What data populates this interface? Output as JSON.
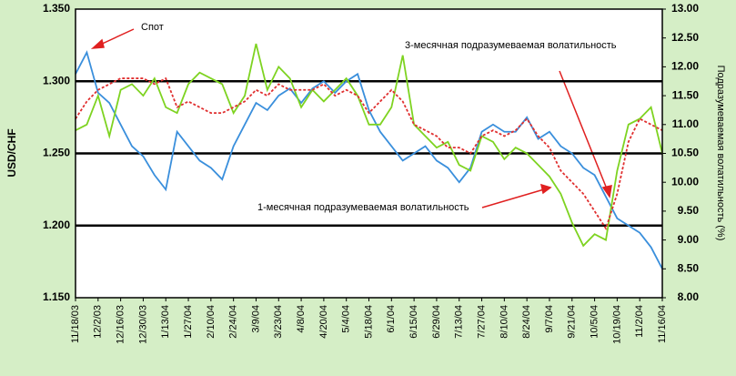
{
  "chart_data": {
    "type": "line",
    "y_label": "USD/CHF",
    "y2_label": "Подразумеваемая волатильность (%)",
    "annotations": [
      "Спот",
      "3-месячная подразумеваемая волатильность",
      "1-месячная подразумеваемая волатильность"
    ],
    "categories": [
      "11/18/03",
      null,
      "12/2/03",
      null,
      "12/16/03",
      null,
      "12/30/03",
      null,
      "1/13/04",
      null,
      "1/27/04",
      null,
      "2/10/04",
      null,
      "2/24/04",
      null,
      "3/9/04",
      null,
      "3/23/04",
      null,
      "4/8/04",
      null,
      "4/20/04",
      null,
      "5/4/04",
      null,
      "5/18/04",
      null,
      "6/1/04",
      null,
      "6/15/04",
      null,
      "6/29/04",
      null,
      "7/13/04",
      null,
      "7/27/04",
      null,
      "8/10/04",
      null,
      "8/24/04",
      null,
      "9/7/04",
      null,
      "9/21/04",
      null,
      "10/5/04",
      null,
      "10/19/04",
      null,
      "11/2/04",
      null,
      "11/16/04"
    ],
    "ylim": [
      1.15,
      1.35
    ],
    "yticks": [
      {
        "value": 1.15,
        "label": "1.150"
      },
      {
        "value": 1.2,
        "label": "1.200"
      },
      {
        "value": 1.25,
        "label": "1.250"
      },
      {
        "value": 1.3,
        "label": "1.300"
      },
      {
        "value": 1.35,
        "label": "1.350"
      }
    ],
    "y2lim": [
      8,
      13
    ],
    "y2ticks": [
      {
        "value": 8,
        "label": "8.00"
      },
      {
        "value": 8.5,
        "label": "8.50"
      },
      {
        "value": 9,
        "label": "9.00"
      },
      {
        "value": 9.5,
        "label": "9.50"
      },
      {
        "value": 10,
        "label": "10.00"
      },
      {
        "value": 10.5,
        "label": "10.50"
      },
      {
        "value": 11,
        "label": "11.00"
      },
      {
        "value": 11.5,
        "label": "11.50"
      },
      {
        "value": 12,
        "label": "12.00"
      },
      {
        "value": 12.5,
        "label": "12.50"
      },
      {
        "value": 13,
        "label": "13.00"
      }
    ],
    "grid": true,
    "series": [
      {
        "name": "Спот",
        "color": "#3a8fdc",
        "values": [
          1.305,
          1.32,
          1.292,
          1.285,
          1.27,
          1.255,
          1.248,
          1.235,
          1.225,
          1.265,
          1.255,
          1.245,
          1.24,
          1.232,
          1.255,
          1.27,
          1.285,
          1.28,
          1.29,
          1.295,
          1.285,
          1.295,
          1.3,
          1.292,
          1.3,
          1.305,
          1.28,
          1.265,
          1.255,
          1.245,
          1.25,
          1.255,
          1.245,
          1.24,
          1.23,
          1.24,
          1.265,
          1.27,
          1.265,
          1.265,
          1.275,
          1.26,
          1.265,
          1.255,
          1.25,
          1.24,
          1.235,
          1.22,
          1.205,
          1.2,
          1.195,
          1.185,
          1.17
        ]
      },
      {
        "name": "1-месячная подразумеваемая волатильность",
        "color": "#7ed321",
        "axis": "y2",
        "values": [
          10.9,
          11.0,
          11.5,
          10.8,
          11.6,
          11.7,
          11.5,
          11.8,
          11.3,
          11.2,
          11.7,
          11.9,
          11.8,
          11.7,
          11.2,
          11.5,
          12.4,
          11.6,
          12.0,
          11.8,
          11.3,
          11.6,
          11.4,
          11.6,
          11.8,
          11.5,
          11.0,
          11.0,
          11.3,
          12.2,
          11.0,
          10.8,
          10.6,
          10.7,
          10.3,
          10.2,
          10.8,
          10.7,
          10.4,
          10.6,
          10.5,
          10.3,
          10.1,
          9.8,
          9.3,
          8.9,
          9.1,
          9.0,
          10.2,
          11.0,
          11.1,
          11.3,
          10.5
        ]
      },
      {
        "name": "3-месячная подразумеваемая волатильность",
        "color": "#e03030",
        "axis": "y2",
        "dashed": true,
        "values": [
          11.1,
          11.4,
          11.6,
          11.7,
          11.8,
          11.8,
          11.8,
          11.7,
          11.8,
          11.3,
          11.4,
          11.3,
          11.2,
          11.2,
          11.3,
          11.4,
          11.6,
          11.5,
          11.7,
          11.6,
          11.6,
          11.6,
          11.7,
          11.5,
          11.6,
          11.5,
          11.2,
          11.4,
          11.6,
          11.4,
          11.0,
          10.9,
          10.8,
          10.6,
          10.6,
          10.5,
          10.8,
          10.9,
          10.8,
          10.9,
          11.1,
          10.8,
          10.6,
          10.2,
          10.0,
          9.8,
          9.5,
          9.2,
          9.8,
          10.7,
          11.1,
          11.0,
          10.9
        ]
      }
    ]
  }
}
